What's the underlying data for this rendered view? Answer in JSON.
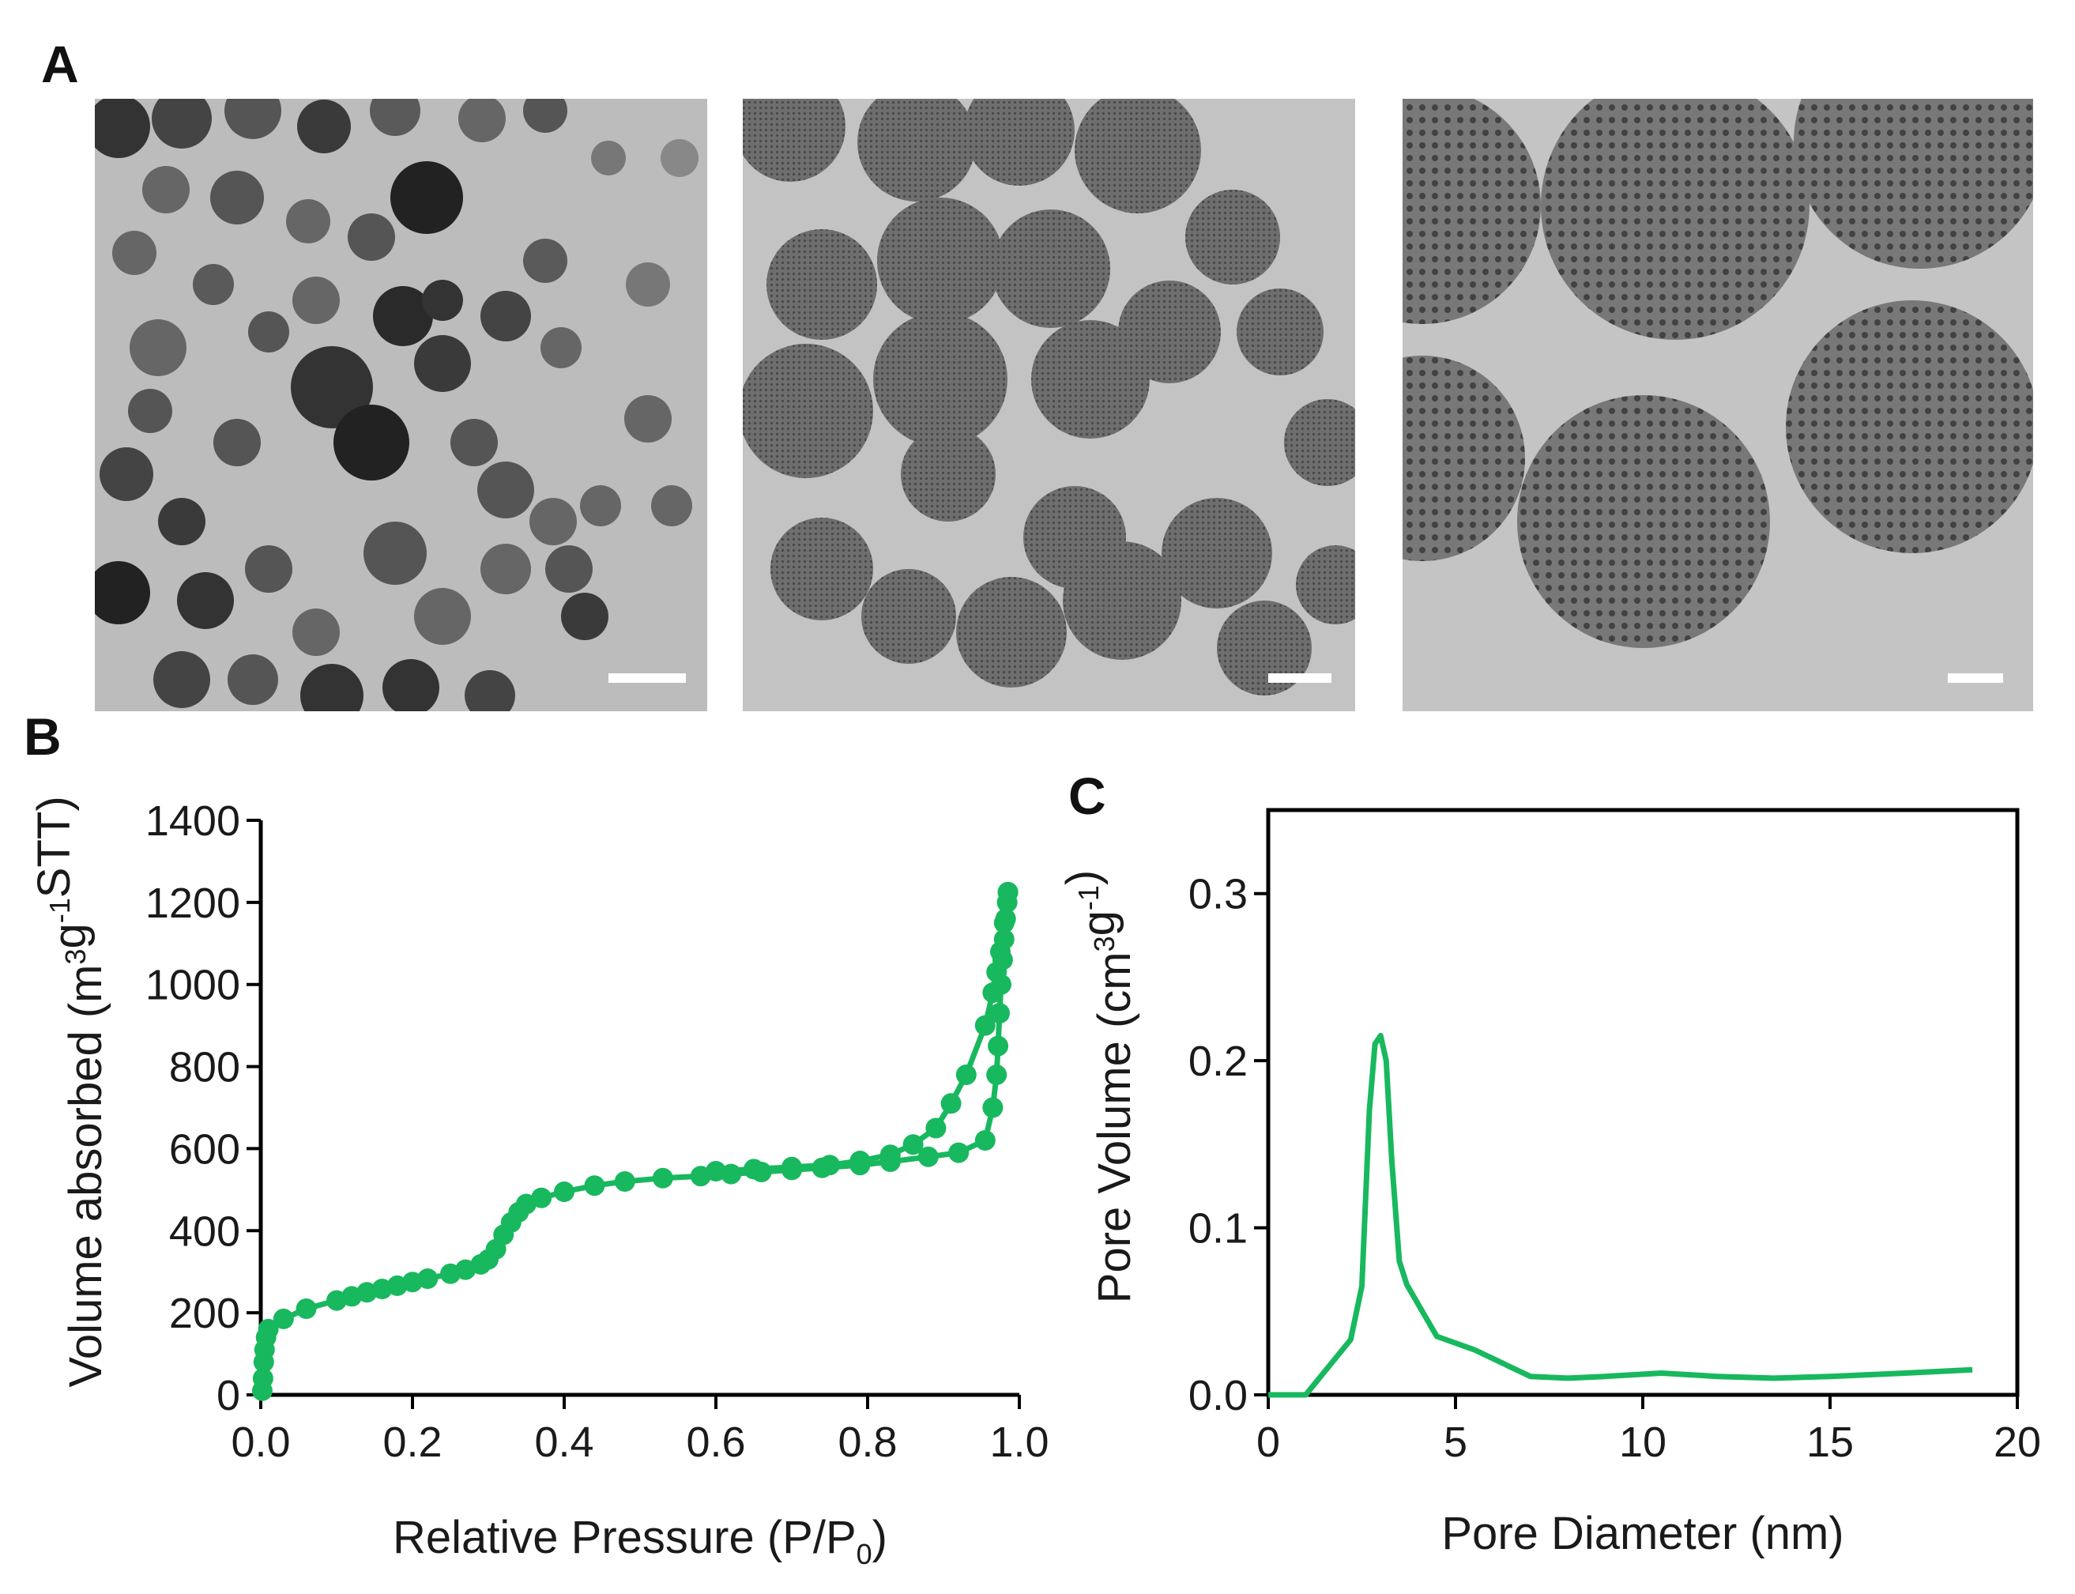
{
  "panels": {
    "a": {
      "letter": "A"
    },
    "b": {
      "letter": "B"
    },
    "c": {
      "letter": "C"
    }
  },
  "colors": {
    "series": "#18b85e",
    "axis": "#000000",
    "tem_background": "#b9b9b9",
    "tem_particle": "#555555",
    "scale_bar": "#ffffff"
  },
  "tem_images": [
    {
      "name": "tem-low-magnification",
      "scale_bar": true
    },
    {
      "name": "tem-medium-magnification",
      "scale_bar": true
    },
    {
      "name": "tem-high-magnification",
      "scale_bar": true
    }
  ],
  "chart_data": [
    {
      "id": "B",
      "type": "scatter",
      "connected": true,
      "xlabel": "Relative Pressure (P/P",
      "xlabel_sub": "0",
      "xlabel_tail": ")",
      "ylabel_pre": "Volume absorbed (m",
      "ylabel_sup1": "3",
      "ylabel_mid": "g",
      "ylabel_sup2": "-1",
      "ylabel_tail": "STT)",
      "xlim": [
        0.0,
        1.0
      ],
      "ylim": [
        0,
        1400
      ],
      "xticks": [
        0.0,
        0.2,
        0.4,
        0.6,
        0.8,
        1.0
      ],
      "xtick_labels": [
        "0.0",
        "0.2",
        "0.4",
        "0.6",
        "0.8",
        "1.0"
      ],
      "yticks": [
        0,
        200,
        400,
        600,
        800,
        1000,
        1200,
        1400
      ],
      "ytick_labels": [
        "0",
        "200",
        "400",
        "600",
        "800",
        "1000",
        "1200",
        "1400"
      ],
      "series": [
        {
          "points": [
            [
              0.002,
              10
            ],
            [
              0.003,
              40
            ],
            [
              0.004,
              80
            ],
            [
              0.005,
              110
            ],
            [
              0.007,
              140
            ],
            [
              0.01,
              160
            ],
            [
              0.03,
              185
            ],
            [
              0.06,
              210
            ],
            [
              0.1,
              230
            ],
            [
              0.12,
              240
            ],
            [
              0.14,
              250
            ],
            [
              0.16,
              258
            ],
            [
              0.18,
              266
            ],
            [
              0.2,
              275
            ],
            [
              0.22,
              283
            ],
            [
              0.25,
              295
            ],
            [
              0.27,
              305
            ],
            [
              0.29,
              318
            ],
            [
              0.3,
              330
            ],
            [
              0.31,
              355
            ],
            [
              0.32,
              390
            ],
            [
              0.33,
              420
            ],
            [
              0.34,
              445
            ],
            [
              0.35,
              465
            ],
            [
              0.37,
              480
            ],
            [
              0.4,
              495
            ],
            [
              0.44,
              510
            ],
            [
              0.48,
              520
            ],
            [
              0.53,
              528
            ],
            [
              0.58,
              533
            ],
            [
              0.62,
              538
            ],
            [
              0.66,
              543
            ],
            [
              0.7,
              548
            ],
            [
              0.74,
              553
            ],
            [
              0.79,
              560
            ],
            [
              0.83,
              568
            ],
            [
              0.88,
              580
            ],
            [
              0.92,
              590
            ],
            [
              0.955,
              620
            ],
            [
              0.965,
              700
            ],
            [
              0.97,
              780
            ],
            [
              0.972,
              850
            ],
            [
              0.974,
              930
            ],
            [
              0.976,
              1000
            ],
            [
              0.978,
              1060
            ],
            [
              0.98,
              1110
            ],
            [
              0.982,
              1160
            ],
            [
              0.984,
              1200
            ],
            [
              0.985,
              1225
            ]
          ]
        },
        {
          "points": [
            [
              0.985,
              1225
            ],
            [
              0.98,
              1150
            ],
            [
              0.975,
              1080
            ],
            [
              0.97,
              1030
            ],
            [
              0.965,
              980
            ],
            [
              0.955,
              900
            ],
            [
              0.93,
              780
            ],
            [
              0.91,
              710
            ],
            [
              0.89,
              650
            ],
            [
              0.86,
              610
            ],
            [
              0.83,
              585
            ],
            [
              0.79,
              570
            ],
            [
              0.75,
              560
            ],
            [
              0.7,
              555
            ],
            [
              0.65,
              550
            ],
            [
              0.6,
              545
            ]
          ]
        }
      ]
    },
    {
      "id": "C",
      "type": "line",
      "xlabel": "Pore Diameter (nm)",
      "ylabel_pre": "Pore Volume (cm",
      "ylabel_sup1": "3",
      "ylabel_mid": "g",
      "ylabel_sup2": "-1",
      "ylabel_tail": ")",
      "xlim": [
        0,
        20
      ],
      "ylim": [
        0,
        0.35
      ],
      "xticks": [
        0,
        5,
        10,
        15,
        20
      ],
      "xtick_labels": [
        "0",
        "5",
        "10",
        "15",
        "20"
      ],
      "yticks": [
        0.0,
        0.1,
        0.2,
        0.3
      ],
      "ytick_labels": [
        "0.0",
        "0.1",
        "0.2",
        "0.3"
      ],
      "series": [
        {
          "x": [
            0,
            1.0,
            2.2,
            2.5,
            2.7,
            2.85,
            3.0,
            3.15,
            3.3,
            3.5,
            3.7,
            4.5,
            5.5,
            7.0,
            8.0,
            9.0,
            10.5,
            12.0,
            13.5,
            15.0,
            17.0,
            18.8
          ],
          "y": [
            0,
            0.0,
            0.033,
            0.065,
            0.17,
            0.21,
            0.215,
            0.2,
            0.14,
            0.08,
            0.066,
            0.035,
            0.027,
            0.011,
            0.01,
            0.011,
            0.013,
            0.011,
            0.01,
            0.011,
            0.013,
            0.015
          ]
        }
      ]
    }
  ]
}
